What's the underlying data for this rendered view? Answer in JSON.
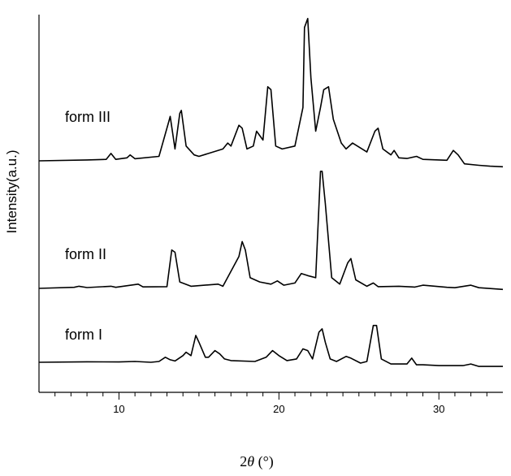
{
  "chart_data": {
    "type": "line",
    "xlabel_prefix": "2",
    "xlabel_symbol": "θ",
    "xlabel_unit": " (°)",
    "ylabel": "Intensity(a.u.)",
    "xlim": [
      5,
      34
    ],
    "x_major_ticks": [
      10,
      20,
      30
    ],
    "x_minor_ticks": [
      6,
      7,
      8,
      9,
      11,
      12,
      13,
      14,
      15,
      16,
      17,
      18,
      19,
      21,
      22,
      23,
      24,
      25,
      26,
      27,
      28,
      29,
      31,
      32,
      33
    ],
    "series": [
      {
        "name": "form III",
        "baseline": 0.0,
        "points": [
          [
            5,
            0
          ],
          [
            8,
            0.3
          ],
          [
            9.2,
            0.5
          ],
          [
            9.5,
            2.5
          ],
          [
            9.8,
            0.5
          ],
          [
            10.5,
            1
          ],
          [
            10.7,
            2
          ],
          [
            11,
            0.7
          ],
          [
            12.5,
            1.5
          ],
          [
            13.1,
            13
          ],
          [
            13.2,
            15
          ],
          [
            13.5,
            4
          ],
          [
            13.8,
            16
          ],
          [
            13.9,
            17
          ],
          [
            14.2,
            5
          ],
          [
            14.7,
            2
          ],
          [
            15,
            1.5
          ],
          [
            16.5,
            4
          ],
          [
            16.8,
            6
          ],
          [
            17,
            5
          ],
          [
            17.5,
            12
          ],
          [
            17.7,
            11
          ],
          [
            18,
            4
          ],
          [
            18.4,
            5
          ],
          [
            18.6,
            10
          ],
          [
            19,
            7
          ],
          [
            19.3,
            25
          ],
          [
            19.5,
            24
          ],
          [
            19.8,
            5
          ],
          [
            20.2,
            4
          ],
          [
            21,
            5
          ],
          [
            21.5,
            18
          ],
          [
            21.6,
            45
          ],
          [
            21.8,
            48
          ],
          [
            22,
            28
          ],
          [
            22.3,
            10
          ],
          [
            22.6,
            18
          ],
          [
            22.8,
            24
          ],
          [
            23.1,
            25
          ],
          [
            23.4,
            14
          ],
          [
            23.9,
            6
          ],
          [
            24.2,
            4
          ],
          [
            24.6,
            6
          ],
          [
            25.5,
            3
          ],
          [
            26,
            10
          ],
          [
            26.2,
            11
          ],
          [
            26.5,
            4
          ],
          [
            27,
            2
          ],
          [
            27.2,
            3.5
          ],
          [
            27.5,
            1
          ],
          [
            28,
            0.8
          ],
          [
            28.6,
            1.5
          ],
          [
            29,
            0.5
          ],
          [
            30.5,
            0.2
          ],
          [
            30.9,
            3.5
          ],
          [
            31.2,
            2
          ],
          [
            31.6,
            -1
          ],
          [
            32.5,
            -1.5
          ],
          [
            33.2,
            -1.8
          ],
          [
            34,
            -2
          ]
        ]
      },
      {
        "name": "form II",
        "baseline": 0.0,
        "points": [
          [
            5,
            0
          ],
          [
            7.2,
            0.5
          ],
          [
            7.5,
            1
          ],
          [
            8,
            0.4
          ],
          [
            9.5,
            1
          ],
          [
            9.8,
            0.5
          ],
          [
            11.2,
            2
          ],
          [
            11.5,
            0.7
          ],
          [
            13,
            0.8
          ],
          [
            13.3,
            18
          ],
          [
            13.5,
            17
          ],
          [
            13.8,
            3
          ],
          [
            14.5,
            1
          ],
          [
            16.2,
            2
          ],
          [
            16.5,
            1
          ],
          [
            17.5,
            15
          ],
          [
            17.7,
            22
          ],
          [
            17.9,
            18
          ],
          [
            18.2,
            5
          ],
          [
            18.5,
            4
          ],
          [
            18.8,
            3
          ],
          [
            19.5,
            2
          ],
          [
            19.9,
            3.5
          ],
          [
            20.3,
            1.5
          ],
          [
            21,
            2.5
          ],
          [
            21.4,
            7
          ],
          [
            21.8,
            6
          ],
          [
            22.3,
            5
          ],
          [
            22.6,
            55
          ],
          [
            22.7,
            55
          ],
          [
            22.9,
            40
          ],
          [
            23.3,
            5
          ],
          [
            23.8,
            2
          ],
          [
            24.3,
            12
          ],
          [
            24.5,
            14
          ],
          [
            24.8,
            4
          ],
          [
            25.5,
            1
          ],
          [
            25.9,
            2.5
          ],
          [
            26.2,
            0.8
          ],
          [
            27.5,
            1
          ],
          [
            28.5,
            0.6
          ],
          [
            29,
            1.5
          ],
          [
            30.5,
            0.5
          ],
          [
            31,
            0.3
          ],
          [
            32,
            1.5
          ],
          [
            32.5,
            0.3
          ],
          [
            34,
            -0.5
          ]
        ]
      },
      {
        "name": "form I",
        "baseline": 0.0,
        "points": [
          [
            5,
            0
          ],
          [
            8,
            0.3
          ],
          [
            10,
            0.2
          ],
          [
            11,
            0.5
          ],
          [
            12,
            0
          ],
          [
            12.5,
            0.5
          ],
          [
            12.9,
            3
          ],
          [
            13.2,
            1.5
          ],
          [
            13.5,
            0.8
          ],
          [
            14,
            4
          ],
          [
            14.2,
            6
          ],
          [
            14.5,
            4
          ],
          [
            14.8,
            16
          ],
          [
            15,
            12
          ],
          [
            15.4,
            3
          ],
          [
            15.6,
            3
          ],
          [
            16,
            7
          ],
          [
            16.3,
            5
          ],
          [
            16.6,
            2
          ],
          [
            17,
            1
          ],
          [
            18.5,
            0.5
          ],
          [
            19.2,
            3
          ],
          [
            19.6,
            7
          ],
          [
            20,
            4
          ],
          [
            20.5,
            1
          ],
          [
            21.1,
            2
          ],
          [
            21.5,
            8
          ],
          [
            21.8,
            7
          ],
          [
            22.1,
            2
          ],
          [
            22.5,
            18
          ],
          [
            22.7,
            20
          ],
          [
            22.9,
            12
          ],
          [
            23.2,
            2
          ],
          [
            23.6,
            0.5
          ],
          [
            24.2,
            3.5
          ],
          [
            24.5,
            2.5
          ],
          [
            25.1,
            -0.5
          ],
          [
            25.5,
            0.5
          ],
          [
            25.9,
            22
          ],
          [
            26.1,
            22
          ],
          [
            26.4,
            2
          ],
          [
            27,
            -1
          ],
          [
            28,
            -1
          ],
          [
            28.3,
            2.5
          ],
          [
            28.6,
            -1.5
          ],
          [
            29,
            -1.5
          ],
          [
            30,
            -2
          ],
          [
            31.5,
            -2
          ],
          [
            32,
            -1
          ],
          [
            32.5,
            -2.5
          ],
          [
            34,
            -2.5
          ]
        ]
      }
    ]
  }
}
